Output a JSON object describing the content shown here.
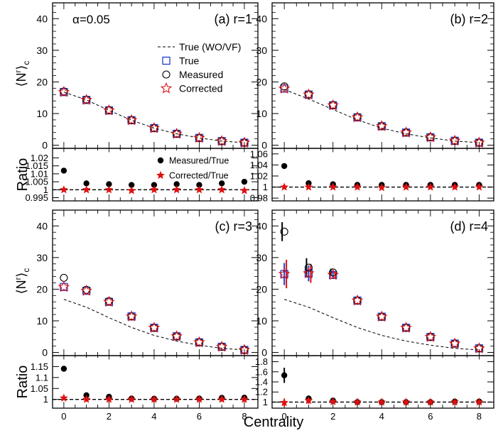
{
  "figure": {
    "x_title": "Centrality",
    "y_title_main": "⟨N",
    "y_title_main_sup": "r",
    "y_title_main_tail": "⟩",
    "y_title_main_sub": "c",
    "y_title_ratio": "Ratio",
    "alpha_label": "α=0.05",
    "colors": {
      "true_marker": "#1f3fd0",
      "corrected_marker": "#e01010",
      "measured_marker": "#000000",
      "curve": "#000000"
    }
  },
  "legend_main": {
    "items": [
      {
        "label": "True (WO/VF)",
        "icon": "dashed-line"
      },
      {
        "label": "True",
        "icon": "blue-open-square"
      },
      {
        "label": "Measured",
        "icon": "black-open-circle"
      },
      {
        "label": "Corrected",
        "icon": "red-open-star"
      }
    ]
  },
  "legend_ratio": {
    "items": [
      {
        "label": "Measured/True",
        "icon": "black-filled-circle"
      },
      {
        "label": "Corrected/True",
        "icon": "red-filled-star"
      }
    ]
  },
  "chart_data": [
    {
      "type": "scatter",
      "panel_label": "(a) r=1",
      "xlabel": "Centrality",
      "ylabel": "⟨N^r⟩_c",
      "xlim": [
        -0.5,
        8.6
      ],
      "ylim": [
        -1,
        45
      ],
      "yticks": [
        0,
        10,
        20,
        30,
        40
      ],
      "x": [
        0,
        1,
        2,
        3,
        4,
        5,
        6,
        7,
        8
      ],
      "series": [
        {
          "name": "True (WO/VF)",
          "style": "dashed-line",
          "values": [
            16.8,
            14.3,
            11.0,
            7.9,
            5.4,
            3.6,
            2.3,
            1.3,
            0.8
          ]
        },
        {
          "name": "True",
          "style": "square",
          "values": [
            16.8,
            14.3,
            11.0,
            7.9,
            5.4,
            3.6,
            2.3,
            1.3,
            0.8
          ]
        },
        {
          "name": "Measured",
          "style": "circle",
          "values": [
            17.0,
            14.4,
            11.1,
            7.9,
            5.4,
            3.6,
            2.3,
            1.3,
            0.8
          ]
        },
        {
          "name": "Corrected",
          "style": "star",
          "values": [
            16.8,
            14.3,
            11.0,
            7.9,
            5.4,
            3.6,
            2.3,
            1.3,
            0.8
          ]
        }
      ],
      "ratio": {
        "ylabel": "Ratio",
        "ylim": [
          0.993,
          1.026
        ],
        "yticks": [
          0.995,
          1,
          1.005,
          1.01,
          1.015,
          1.02
        ],
        "yticklabels": [
          "0.995",
          "1",
          "1.005",
          "1.01",
          "1.015",
          "1.02"
        ],
        "reference": 1,
        "series": [
          {
            "name": "Measured/True",
            "style": "filled-circle",
            "values": [
              1.012,
              1.004,
              1.0035,
              1.003,
              1.003,
              1.0035,
              1.003,
              1.004,
              1.005
            ]
          },
          {
            "name": "Corrected/True",
            "style": "filled-star",
            "values": [
              1.0,
              1.0,
              1.0,
              0.9995,
              1.0,
              1.0,
              1.0,
              1.0,
              0.9995
            ]
          }
        ]
      }
    },
    {
      "type": "scatter",
      "panel_label": "(b) r=2",
      "xlabel": "Centrality",
      "ylabel": "⟨N^r⟩_c",
      "xlim": [
        -0.5,
        8.6
      ],
      "ylim": [
        -1,
        45
      ],
      "yticks": [
        0,
        10,
        20,
        30,
        40
      ],
      "x": [
        0,
        1,
        2,
        3,
        4,
        5,
        6,
        7,
        8
      ],
      "series": [
        {
          "name": "True (WO/VF)",
          "style": "dashed-line",
          "values": [
            17.6,
            14.6,
            11.3,
            8.0,
            5.4,
            3.6,
            2.3,
            1.3,
            0.8
          ]
        },
        {
          "name": "True",
          "style": "square",
          "values": [
            17.9,
            16.0,
            12.6,
            8.8,
            6.0,
            4.0,
            2.5,
            1.4,
            0.8
          ]
        },
        {
          "name": "Measured",
          "style": "circle",
          "values": [
            18.6,
            16.1,
            12.7,
            8.9,
            6.0,
            4.0,
            2.5,
            1.4,
            0.8
          ]
        },
        {
          "name": "Corrected",
          "style": "star",
          "values": [
            17.9,
            16.0,
            12.6,
            8.8,
            6.0,
            4.0,
            2.5,
            1.4,
            0.8
          ]
        }
      ],
      "ratio": {
        "ylabel": "Ratio",
        "ylim": [
          0.975,
          1.07
        ],
        "yticks": [
          0.98,
          1,
          1.02,
          1.04,
          1.06
        ],
        "yticklabels": [
          "0.98",
          "1",
          "1.02",
          "1.04",
          "1.06"
        ],
        "reference": 1,
        "series": [
          {
            "name": "Measured/True",
            "style": "filled-circle",
            "values": [
              1.038,
              1.007,
              1.005,
              1.004,
              1.004,
              1.004,
              1.004,
              1.004,
              1.004
            ]
          },
          {
            "name": "Corrected/True",
            "style": "filled-star",
            "values": [
              1.0,
              1.0,
              1.0,
              1.0,
              0.999,
              1.0,
              1.0,
              1.0,
              1.0
            ]
          }
        ]
      }
    },
    {
      "type": "scatter",
      "panel_label": "(c) r=3",
      "xlabel": "Centrality",
      "ylabel": "⟨N^r⟩_c",
      "xlim": [
        -0.5,
        8.6
      ],
      "ylim": [
        -1,
        45
      ],
      "yticks": [
        0,
        10,
        20,
        30,
        40
      ],
      "x": [
        0,
        1,
        2,
        3,
        4,
        5,
        6,
        7,
        8
      ],
      "series": [
        {
          "name": "True (WO/VF)",
          "style": "dashed-line",
          "values": [
            16.8,
            14.3,
            11.0,
            7.9,
            5.4,
            3.6,
            2.3,
            1.3,
            0.8
          ]
        },
        {
          "name": "True",
          "style": "square",
          "values": [
            20.7,
            19.5,
            16.0,
            11.4,
            7.8,
            5.1,
            3.2,
            1.8,
            0.8
          ]
        },
        {
          "name": "Measured",
          "style": "circle",
          "values": [
            23.6,
            19.8,
            16.2,
            11.4,
            7.8,
            5.1,
            3.2,
            1.8,
            0.8
          ]
        },
        {
          "name": "Corrected",
          "style": "star",
          "values": [
            20.7,
            19.5,
            16.0,
            11.4,
            7.8,
            5.1,
            3.2,
            1.8,
            0.8
          ]
        }
      ],
      "ratio": {
        "ylabel": "Ratio",
        "ylim": [
          0.96,
          1.2
        ],
        "yticks": [
          1,
          1.05,
          1.1,
          1.15
        ],
        "yticklabels": [
          "1",
          "1.05",
          "1.1",
          "1.15"
        ],
        "reference": 1,
        "series": [
          {
            "name": "Measured/True",
            "style": "filled-circle",
            "values": [
              1.14,
              1.019,
              1.012,
              1.004,
              1.003,
              1.003,
              1.004,
              1.007,
              1.008
            ]
          },
          {
            "name": "Corrected/True",
            "style": "filled-star",
            "values": [
              1.006,
              1.0,
              1.0,
              1.0,
              1.0,
              1.0,
              1.0,
              1.0,
              1.0
            ]
          }
        ]
      }
    },
    {
      "type": "scatter",
      "panel_label": "(d) r=4",
      "xlabel": "Centrality",
      "ylabel": "⟨N^r⟩_c",
      "xlim": [
        -0.5,
        8.6
      ],
      "ylim": [
        -1,
        45
      ],
      "yticks": [
        0,
        10,
        20,
        30,
        40
      ],
      "x": [
        0,
        1,
        2,
        3,
        4,
        5,
        6,
        7,
        8
      ],
      "series": [
        {
          "name": "True (WO/VF)",
          "style": "dashed-line",
          "values": [
            16.8,
            14.3,
            11.0,
            7.9,
            5.4,
            3.6,
            2.3,
            1.3,
            0.8
          ]
        },
        {
          "name": "True",
          "style": "square",
          "values": [
            24.8,
            25.0,
            24.5,
            16.4,
            11.3,
            7.8,
            4.9,
            2.8,
            1.3
          ]
        },
        {
          "name": "Measured",
          "style": "circle",
          "values": [
            38.2,
            26.8,
            25.3,
            16.4,
            11.3,
            7.8,
            4.9,
            2.8,
            1.3
          ]
        },
        {
          "name": "Corrected",
          "style": "star",
          "values": [
            24.8,
            25.0,
            24.5,
            16.4,
            11.3,
            7.8,
            4.9,
            2.8,
            1.3
          ]
        }
      ],
      "errors": {
        "Measured": [
          3.0,
          3.0,
          1.2,
          0.3,
          0.2,
          0.1,
          0.1,
          0.1,
          0.1
        ],
        "True": [
          3.5,
          2.5,
          1.0,
          0.3,
          0.2,
          0.1,
          0.1,
          0.1,
          0.1
        ],
        "Corrected": [
          4.5,
          3.0,
          1.0,
          0.3,
          0.2,
          0.1,
          0.1,
          0.1,
          0.1
        ]
      },
      "ratio": {
        "ylabel": "Ratio",
        "ylim": [
          0.88,
          1.92
        ],
        "yticks": [
          1,
          1.2,
          1.4,
          1.6,
          1.8
        ],
        "yticklabels": [
          "1",
          "1.2",
          "1.4",
          "1.6",
          "1.8"
        ],
        "reference": 1,
        "series": [
          {
            "name": "Measured/True",
            "style": "filled-circle",
            "values": [
              1.53,
              1.07,
              1.03,
              1.0,
              1.0,
              1.0,
              1.0,
              1.01,
              1.01
            ]
          },
          {
            "name": "Corrected/True",
            "style": "filled-star",
            "values": [
              0.99,
              1.03,
              1.01,
              1.0,
              1.0,
              1.0,
              1.0,
              1.0,
              1.0
            ]
          }
        ],
        "errors": {
          "Measured/True": [
            0.15,
            0.06,
            0.03,
            0.01,
            0.01,
            0.01,
            0.01,
            0.01,
            0.01
          ],
          "Corrected/True": [
            0.08,
            0.06,
            0.03,
            0.01,
            0.01,
            0.01,
            0.01,
            0.01,
            0.01
          ]
        }
      }
    }
  ]
}
